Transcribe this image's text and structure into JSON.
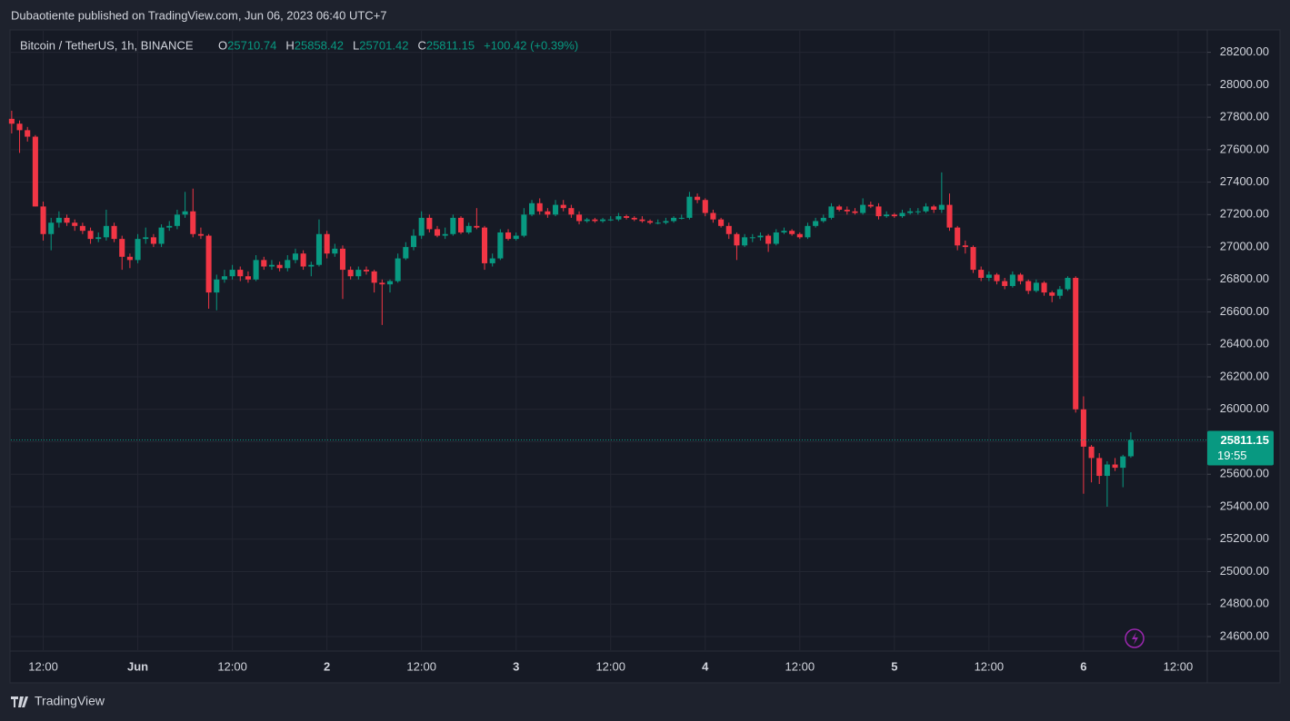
{
  "header": "Dubaotiente published on TradingView.com, Jun 06, 2023 06:40 UTC+7",
  "footer": "TradingView",
  "chart_data": {
    "type": "candlestick",
    "symbol": "Bitcoin / TetherUS, 1h, BINANCE",
    "legend_ohlc": [
      {
        "label": "O",
        "value": 25710.74
      },
      {
        "label": "H",
        "value": 25858.42
      },
      {
        "label": "L",
        "value": 25701.42
      },
      {
        "label": "C",
        "value": 25811.15
      }
    ],
    "change": "+100.42 (+0.39%)",
    "last_price": 25811.15,
    "countdown": "19:55",
    "up_color": "#089981",
    "down_color": "#f23645",
    "grid": true,
    "ylim": [
      24516,
      28332
    ],
    "yticks": [
      {
        "value": 24600,
        "label": "24600.00"
      },
      {
        "value": 24800,
        "label": "24800.00"
      },
      {
        "value": 25000,
        "label": "25000.00"
      },
      {
        "value": 25200,
        "label": "25200.00"
      },
      {
        "value": 25400,
        "label": "25400.00"
      },
      {
        "value": 25600,
        "label": "25600.00"
      },
      {
        "value": 25800,
        "label": "25800.00"
      },
      {
        "value": 26000,
        "label": "26000.00"
      },
      {
        "value": 26200,
        "label": "26200.00"
      },
      {
        "value": 26400,
        "label": "26400.00"
      },
      {
        "value": 26600,
        "label": "26600.00"
      },
      {
        "value": 26800,
        "label": "26800.00"
      },
      {
        "value": 27000,
        "label": "27000.00"
      },
      {
        "value": 27200,
        "label": "27200.00"
      },
      {
        "value": 27400,
        "label": "27400.00"
      },
      {
        "value": 27600,
        "label": "27600.00"
      },
      {
        "value": 27800,
        "label": "27800.00"
      },
      {
        "value": 28000,
        "label": "28000.00"
      },
      {
        "value": 28200,
        "label": "28200.00"
      }
    ],
    "xlim": [
      -0.1,
      151.7
    ],
    "xticks": [
      {
        "value": 4,
        "label": "12:00"
      },
      {
        "value": 16,
        "label": "Jun"
      },
      {
        "value": 28,
        "label": "12:00"
      },
      {
        "value": 40,
        "label": "2"
      },
      {
        "value": 52,
        "label": "12:00"
      },
      {
        "value": 64,
        "label": "3"
      },
      {
        "value": 76,
        "label": "12:00"
      },
      {
        "value": 88,
        "label": "4"
      },
      {
        "value": 100,
        "label": "12:00"
      },
      {
        "value": 112,
        "label": "5"
      },
      {
        "value": 124,
        "label": "12:00"
      },
      {
        "value": 136,
        "label": "6"
      },
      {
        "value": 148,
        "label": "12:00"
      }
    ],
    "ohlc": [
      [
        27790,
        27840,
        27700,
        27760
      ],
      [
        27760,
        27780,
        27580,
        27720
      ],
      [
        27720,
        27740,
        27650,
        27680
      ],
      [
        27680,
        27690,
        27250,
        27250
      ],
      [
        27250,
        27280,
        27040,
        27080
      ],
      [
        27080,
        27180,
        26980,
        27150
      ],
      [
        27150,
        27220,
        27120,
        27180
      ],
      [
        27180,
        27200,
        27130,
        27150
      ],
      [
        27150,
        27170,
        27100,
        27130
      ],
      [
        27130,
        27150,
        27080,
        27100
      ],
      [
        27100,
        27120,
        27020,
        27050
      ],
      [
        27050,
        27090,
        27030,
        27060
      ],
      [
        27060,
        27230,
        27040,
        27130
      ],
      [
        27130,
        27150,
        27030,
        27050
      ],
      [
        27050,
        27070,
        26860,
        26940
      ],
      [
        26940,
        26960,
        26870,
        26920
      ],
      [
        26920,
        27080,
        26900,
        27050
      ],
      [
        27050,
        27120,
        27020,
        27060
      ],
      [
        27060,
        27080,
        27000,
        27020
      ],
      [
        27020,
        27140,
        27000,
        27120
      ],
      [
        27120,
        27160,
        27100,
        27130
      ],
      [
        27130,
        27230,
        27110,
        27200
      ],
      [
        27200,
        27340,
        27180,
        27220
      ],
      [
        27220,
        27360,
        27060,
        27080
      ],
      [
        27080,
        27120,
        27050,
        27070
      ],
      [
        27070,
        27080,
        26620,
        26720
      ],
      [
        26720,
        26830,
        26610,
        26800
      ],
      [
        26800,
        26860,
        26780,
        26820
      ],
      [
        26820,
        26890,
        26800,
        26860
      ],
      [
        26860,
        26880,
        26790,
        26820
      ],
      [
        26820,
        26850,
        26780,
        26800
      ],
      [
        26800,
        26950,
        26790,
        26920
      ],
      [
        26920,
        26940,
        26860,
        26880
      ],
      [
        26880,
        26920,
        26860,
        26890
      ],
      [
        26890,
        26910,
        26850,
        26870
      ],
      [
        26870,
        26950,
        26850,
        26920
      ],
      [
        26920,
        26990,
        26900,
        26960
      ],
      [
        26960,
        26980,
        26860,
        26880
      ],
      [
        26880,
        26910,
        26820,
        26890
      ],
      [
        26890,
        27170,
        26880,
        27080
      ],
      [
        27080,
        27100,
        26930,
        26960
      ],
      [
        26960,
        27020,
        26940,
        26990
      ],
      [
        26990,
        27010,
        26680,
        26860
      ],
      [
        26860,
        26880,
        26800,
        26820
      ],
      [
        26820,
        26880,
        26800,
        26860
      ],
      [
        26860,
        26880,
        26830,
        26850
      ],
      [
        26850,
        26860,
        26720,
        26780
      ],
      [
        26780,
        26800,
        26520,
        26770
      ],
      [
        26770,
        26800,
        26720,
        26790
      ],
      [
        26790,
        26960,
        26780,
        26930
      ],
      [
        26930,
        27030,
        26920,
        27000
      ],
      [
        27000,
        27110,
        26980,
        27070
      ],
      [
        27070,
        27220,
        27050,
        27180
      ],
      [
        27180,
        27200,
        27090,
        27110
      ],
      [
        27110,
        27130,
        27060,
        27070
      ],
      [
        27070,
        27120,
        27050,
        27080
      ],
      [
        27080,
        27200,
        27070,
        27180
      ],
      [
        27180,
        27190,
        27080,
        27090
      ],
      [
        27090,
        27150,
        27080,
        27130
      ],
      [
        27130,
        27240,
        27110,
        27120
      ],
      [
        27120,
        27130,
        26860,
        26900
      ],
      [
        26900,
        26960,
        26880,
        26930
      ],
      [
        26930,
        27110,
        26920,
        27090
      ],
      [
        27090,
        27110,
        27040,
        27050
      ],
      [
        27050,
        27090,
        27040,
        27070
      ],
      [
        27070,
        27240,
        27060,
        27200
      ],
      [
        27200,
        27290,
        27190,
        27270
      ],
      [
        27270,
        27300,
        27200,
        27220
      ],
      [
        27220,
        27240,
        27180,
        27200
      ],
      [
        27200,
        27290,
        27190,
        27260
      ],
      [
        27260,
        27290,
        27220,
        27240
      ],
      [
        27240,
        27260,
        27180,
        27200
      ],
      [
        27200,
        27220,
        27140,
        27160
      ],
      [
        27160,
        27180,
        27150,
        27170
      ],
      [
        27170,
        27180,
        27150,
        27160
      ],
      [
        27160,
        27180,
        27150,
        27170
      ],
      [
        27170,
        27190,
        27160,
        27170
      ],
      [
        27170,
        27210,
        27160,
        27190
      ],
      [
        27190,
        27200,
        27170,
        27180
      ],
      [
        27180,
        27190,
        27160,
        27170
      ],
      [
        27170,
        27190,
        27150,
        27160
      ],
      [
        27160,
        27170,
        27140,
        27150
      ],
      [
        27150,
        27170,
        27140,
        27150
      ],
      [
        27150,
        27180,
        27140,
        27160
      ],
      [
        27160,
        27190,
        27150,
        27180
      ],
      [
        27180,
        27200,
        27170,
        27180
      ],
      [
        27180,
        27340,
        27170,
        27310
      ],
      [
        27310,
        27330,
        27270,
        27290
      ],
      [
        27290,
        27300,
        27190,
        27210
      ],
      [
        27210,
        27230,
        27150,
        27170
      ],
      [
        27170,
        27180,
        27120,
        27130
      ],
      [
        27130,
        27150,
        27050,
        27080
      ],
      [
        27080,
        27090,
        26920,
        27010
      ],
      [
        27010,
        27080,
        27000,
        27060
      ],
      [
        27060,
        27080,
        27030,
        27060
      ],
      [
        27060,
        27090,
        27040,
        27070
      ],
      [
        27070,
        27080,
        26970,
        27020
      ],
      [
        27020,
        27110,
        27010,
        27090
      ],
      [
        27090,
        27120,
        27080,
        27100
      ],
      [
        27100,
        27110,
        27070,
        27080
      ],
      [
        27080,
        27090,
        27050,
        27060
      ],
      [
        27060,
        27150,
        27050,
        27130
      ],
      [
        27130,
        27180,
        27120,
        27160
      ],
      [
        27160,
        27200,
        27150,
        27180
      ],
      [
        27180,
        27270,
        27170,
        27250
      ],
      [
        27250,
        27260,
        27220,
        27230
      ],
      [
        27230,
        27250,
        27200,
        27220
      ],
      [
        27220,
        27240,
        27200,
        27210
      ],
      [
        27210,
        27300,
        27200,
        27260
      ],
      [
        27260,
        27280,
        27240,
        27250
      ],
      [
        27250,
        27270,
        27170,
        27190
      ],
      [
        27190,
        27220,
        27180,
        27200
      ],
      [
        27200,
        27210,
        27180,
        27190
      ],
      [
        27190,
        27230,
        27180,
        27210
      ],
      [
        27210,
        27240,
        27200,
        27220
      ],
      [
        27220,
        27240,
        27200,
        27220
      ],
      [
        27220,
        27270,
        27210,
        27250
      ],
      [
        27250,
        27260,
        27210,
        27230
      ],
      [
        27230,
        27460,
        27210,
        27260
      ],
      [
        27260,
        27330,
        27100,
        27120
      ],
      [
        27120,
        27130,
        26980,
        27010
      ],
      [
        27010,
        27040,
        26960,
        27000
      ],
      [
        27000,
        27010,
        26840,
        26860
      ],
      [
        26860,
        26880,
        26790,
        26810
      ],
      [
        26810,
        26850,
        26790,
        26830
      ],
      [
        26830,
        26840,
        26770,
        26790
      ],
      [
        26790,
        26810,
        26740,
        26760
      ],
      [
        26760,
        26850,
        26750,
        26830
      ],
      [
        26830,
        26840,
        26770,
        26790
      ],
      [
        26790,
        26800,
        26710,
        26730
      ],
      [
        26730,
        26800,
        26720,
        26780
      ],
      [
        26780,
        26790,
        26700,
        26720
      ],
      [
        26720,
        26730,
        26660,
        26700
      ],
      [
        26700,
        26760,
        26680,
        26740
      ],
      [
        26740,
        26820,
        26730,
        26810
      ],
      [
        26810,
        26820,
        25980,
        26000
      ],
      [
        26000,
        26080,
        25480,
        25770
      ],
      [
        25770,
        25780,
        25550,
        25700
      ],
      [
        25700,
        25730,
        25540,
        25590
      ],
      [
        25590,
        25680,
        25400,
        25660
      ],
      [
        25660,
        25700,
        25620,
        25640
      ],
      [
        25640,
        25720,
        25520,
        25710
      ],
      [
        25710.74,
        25858.42,
        25701.42,
        25811.15
      ]
    ]
  }
}
